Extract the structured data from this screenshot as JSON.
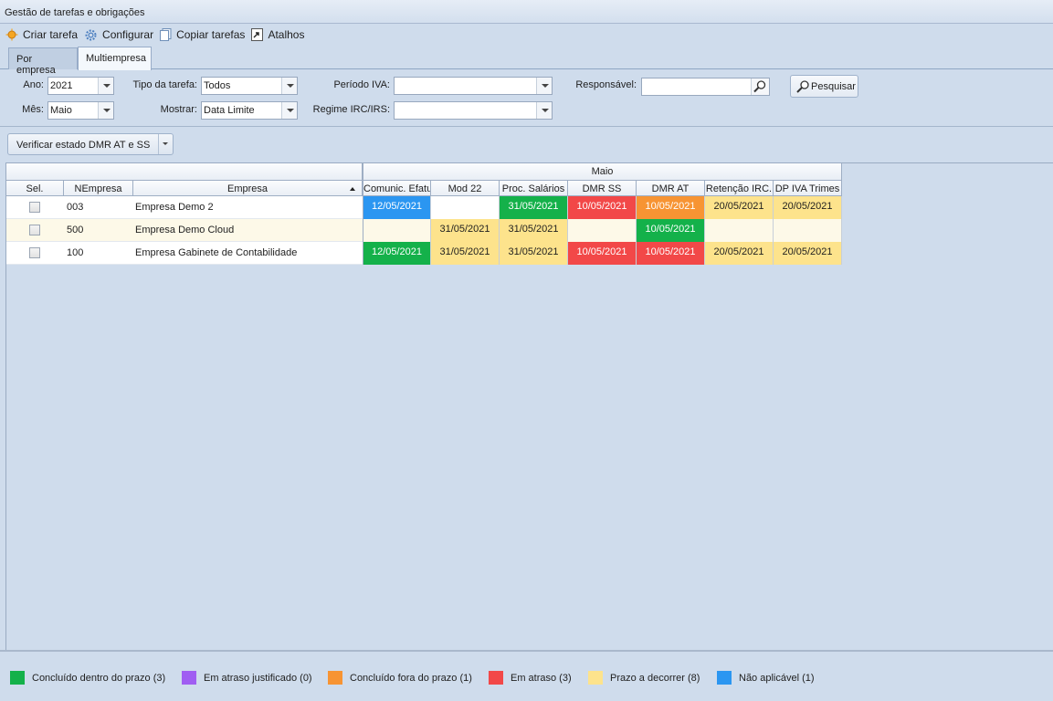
{
  "window": {
    "title": "Gestão de tarefas e obrigações"
  },
  "toolbar": {
    "criar": "Criar tarefa",
    "configurar": "Configurar",
    "copiar": "Copiar tarefas",
    "atalhos": "Atalhos"
  },
  "tabs": {
    "por_empresa": "Por empresa",
    "multiempresa": "Multiempresa"
  },
  "filters": {
    "ano_label": "Ano:",
    "ano_value": "2021",
    "mes_label": "Mês:",
    "mes_value": "Maio",
    "tipo_label": "Tipo da tarefa:",
    "tipo_value": "Todos",
    "mostrar_label": "Mostrar:",
    "mostrar_value": "Data Limite",
    "periodo_label": "Período IVA:",
    "periodo_value": "",
    "regime_label": "Regime IRC/IRS:",
    "regime_value": "",
    "responsavel_label": "Responsável:",
    "responsavel_value": "",
    "pesquisar_label": "Pesquisar"
  },
  "actions": {
    "verificar": "Verificar estado DMR AT e SS"
  },
  "grid": {
    "band": "Maio",
    "col_sel": "Sel.",
    "col_nempresa": "NEmpresa",
    "col_empresa": "Empresa",
    "task_columns": [
      "Comunic. Efatu",
      "Mod 22",
      "Proc. Salários",
      "DMR SS",
      "DMR AT",
      "Retenção IRC.",
      "DP IVA Trimes"
    ],
    "rows": [
      {
        "nempresa": "003",
        "empresa": "Empresa Demo 2",
        "cells": [
          {
            "v": "12/05/2021",
            "s": "na"
          },
          {
            "v": "",
            "s": ""
          },
          {
            "v": "31/05/2021",
            "s": "ok"
          },
          {
            "v": "10/05/2021",
            "s": "late"
          },
          {
            "v": "10/05/2021",
            "s": "okl"
          },
          {
            "v": "20/05/2021",
            "s": "prz"
          },
          {
            "v": "20/05/2021",
            "s": "prz"
          }
        ]
      },
      {
        "nempresa": "500",
        "empresa": "Empresa Demo Cloud",
        "cells": [
          {
            "v": "",
            "s": ""
          },
          {
            "v": "31/05/2021",
            "s": "prz"
          },
          {
            "v": "31/05/2021",
            "s": "prz"
          },
          {
            "v": "",
            "s": ""
          },
          {
            "v": "10/05/2021",
            "s": "ok"
          },
          {
            "v": "",
            "s": ""
          },
          {
            "v": "",
            "s": ""
          }
        ]
      },
      {
        "nempresa": "100",
        "empresa": "Empresa Gabinete de Contabilidade",
        "cells": [
          {
            "v": "12/05/2021",
            "s": "ok"
          },
          {
            "v": "31/05/2021",
            "s": "prz"
          },
          {
            "v": "31/05/2021",
            "s": "prz"
          },
          {
            "v": "10/05/2021",
            "s": "late"
          },
          {
            "v": "10/05/2021",
            "s": "late"
          },
          {
            "v": "20/05/2021",
            "s": "prz"
          },
          {
            "v": "20/05/2021",
            "s": "prz"
          }
        ]
      }
    ]
  },
  "colors": {
    "ok": "#14b14a",
    "justified": "#a05ef2",
    "okl": "#f79433",
    "late": "#f24848",
    "prz": "#fde38c",
    "na": "#2b96f1"
  },
  "legend": [
    {
      "label": "Concluído dentro do prazo (3)",
      "color": "#14b14a"
    },
    {
      "label": "Em atraso justificado (0)",
      "color": "#a05ef2"
    },
    {
      "label": "Concluído fora do prazo (1)",
      "color": "#f79433"
    },
    {
      "label": "Em atraso (3)",
      "color": "#f24848"
    },
    {
      "label": "Prazo a decorrer (8)",
      "color": "#fde38c"
    },
    {
      "label": "Não aplicável (1)",
      "color": "#2b96f1"
    }
  ]
}
